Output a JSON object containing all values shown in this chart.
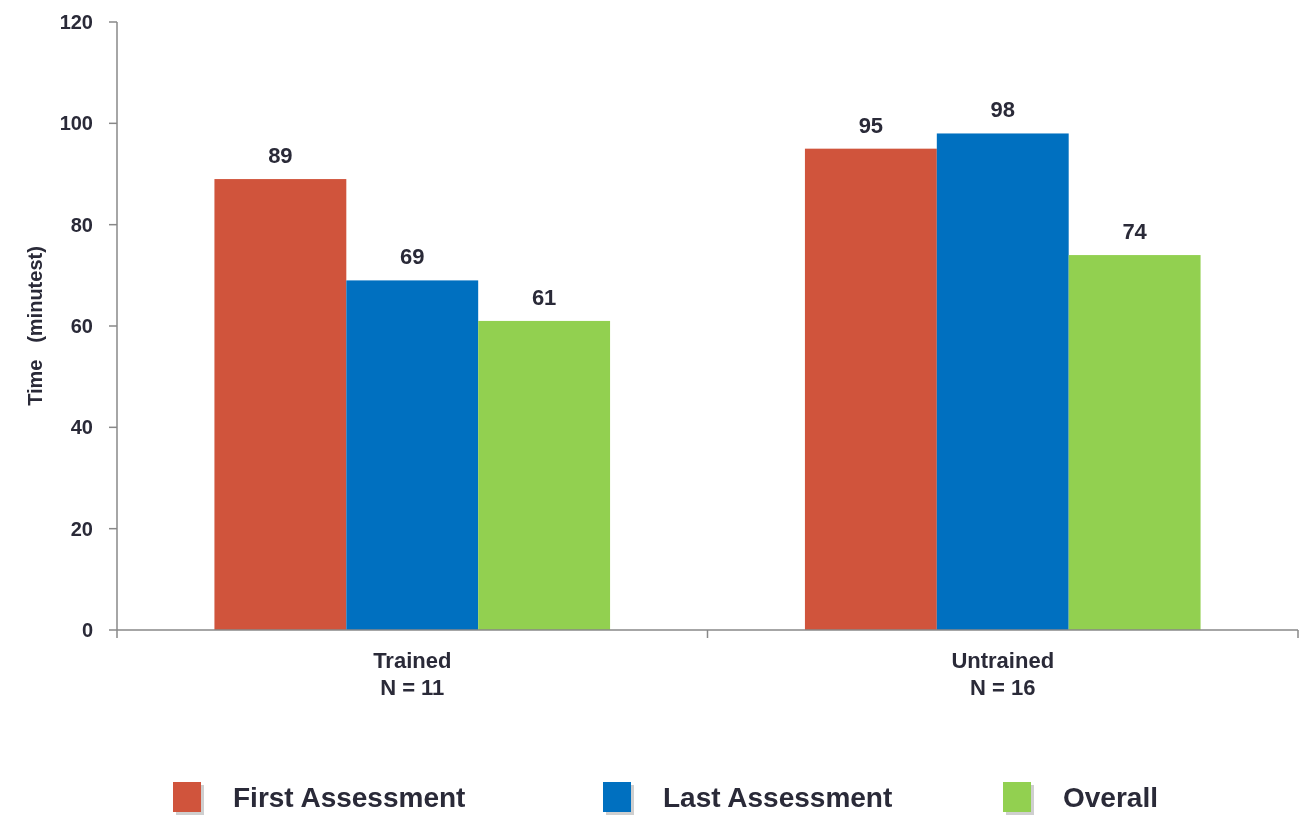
{
  "chart_data": {
    "type": "bar",
    "ylabel": "Time   (minutest)",
    "categories": [
      "Trained\nN = 11",
      "Untrained\nN = 16"
    ],
    "series": [
      {
        "name": "First Assessment",
        "color": "#d0543c",
        "values": [
          89,
          95
        ]
      },
      {
        "name": "Last Assessment",
        "color": "#0070c0",
        "values": [
          69,
          98
        ]
      },
      {
        "name": "Overall",
        "color": "#92d050",
        "values": [
          61,
          74
        ]
      }
    ],
    "ylim": [
      0,
      120
    ],
    "yticks": [
      0,
      20,
      40,
      60,
      80,
      100,
      120
    ],
    "data_labels": true,
    "legend": "bottom",
    "grid": false
  }
}
